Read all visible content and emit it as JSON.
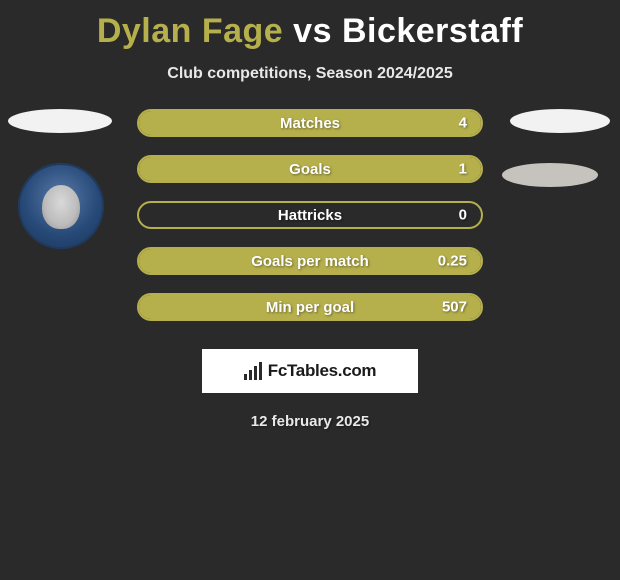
{
  "title": {
    "player1": "Dylan Fage",
    "vs": "vs",
    "player2": "Bickerstaff"
  },
  "subtitle": "Club competitions, Season 2024/2025",
  "colors": {
    "background": "#2a2a2a",
    "accent": "#b5af4c",
    "text": "#ffffff",
    "ellipse_light": "#f2f2f2",
    "ellipse_dim": "#c6c3be"
  },
  "stats": [
    {
      "label": "Matches",
      "value": "4",
      "fill_pct": 100,
      "fill_color": "#b5af4c",
      "border_color": "#b5af4c"
    },
    {
      "label": "Goals",
      "value": "1",
      "fill_pct": 100,
      "fill_color": "#b5af4c",
      "border_color": "#b5af4c"
    },
    {
      "label": "Hattricks",
      "value": "0",
      "fill_pct": 0,
      "fill_color": "#b5af4c",
      "border_color": "#b5af4c"
    },
    {
      "label": "Goals per match",
      "value": "0.25",
      "fill_pct": 100,
      "fill_color": "#b5af4c",
      "border_color": "#b5af4c"
    },
    {
      "label": "Min per goal",
      "value": "507",
      "fill_pct": 100,
      "fill_color": "#b5af4c",
      "border_color": "#b5af4c"
    }
  ],
  "brand": "FcTables.com",
  "date": "12 february 2025"
}
